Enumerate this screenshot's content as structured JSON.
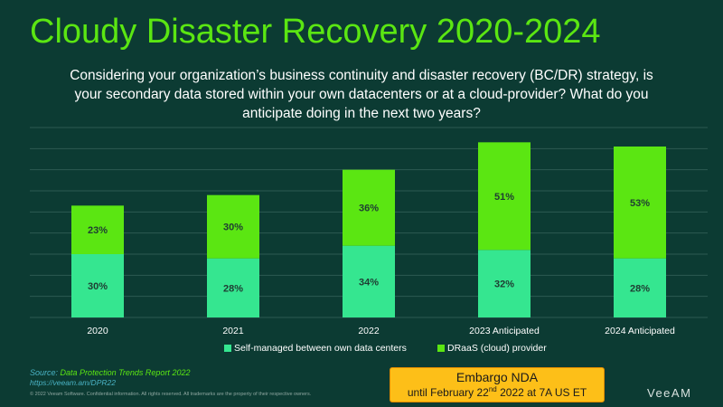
{
  "title": "Cloudy Disaster Recovery 2020-2024",
  "subtitle": "Considering your organization’s business continuity and disaster recovery (BC/DR) strategy, is your secondary data stored within your own datacenters or at a cloud-provider?  What do you anticipate doing in the next two years?",
  "chart_data": {
    "type": "bar",
    "stacked": true,
    "categories": [
      "2020",
      "2021",
      "2022",
      "2023 Anticipated",
      "2024 Anticipated"
    ],
    "series": [
      {
        "name": "Self-managed between own data centers",
        "values": [
          30,
          28,
          34,
          32,
          28
        ],
        "labels": [
          "30%",
          "28%",
          "34%",
          "32%",
          "28%"
        ],
        "color": "#35e690"
      },
      {
        "name": "DRaaS (cloud) provider",
        "values": [
          23,
          30,
          36,
          51,
          53
        ],
        "labels": [
          "23%",
          "30%",
          "36%",
          "51%",
          "53%"
        ],
        "color": "#5be612"
      }
    ],
    "ylim": [
      0,
      90
    ],
    "grid": true,
    "legend": "bottom"
  },
  "colors": {
    "background": "#0c3b33",
    "accent": "#5be612",
    "gridline": "#2c5a52"
  },
  "source": {
    "prefix": "Source:",
    "title": "Data Protection Trends Report 2022",
    "link": "https://veeam.am/DPR22"
  },
  "copyright": "© 2022 Veeam Software. Confidential information. All rights reserved. All trademarks are the property of their respective owners.",
  "embargo": {
    "title": "Embargo NDA",
    "line_before": "until February 22",
    "line_sup": "nd",
    "line_after": " 2022 at 7A US ET"
  },
  "logo": "VeeAM"
}
